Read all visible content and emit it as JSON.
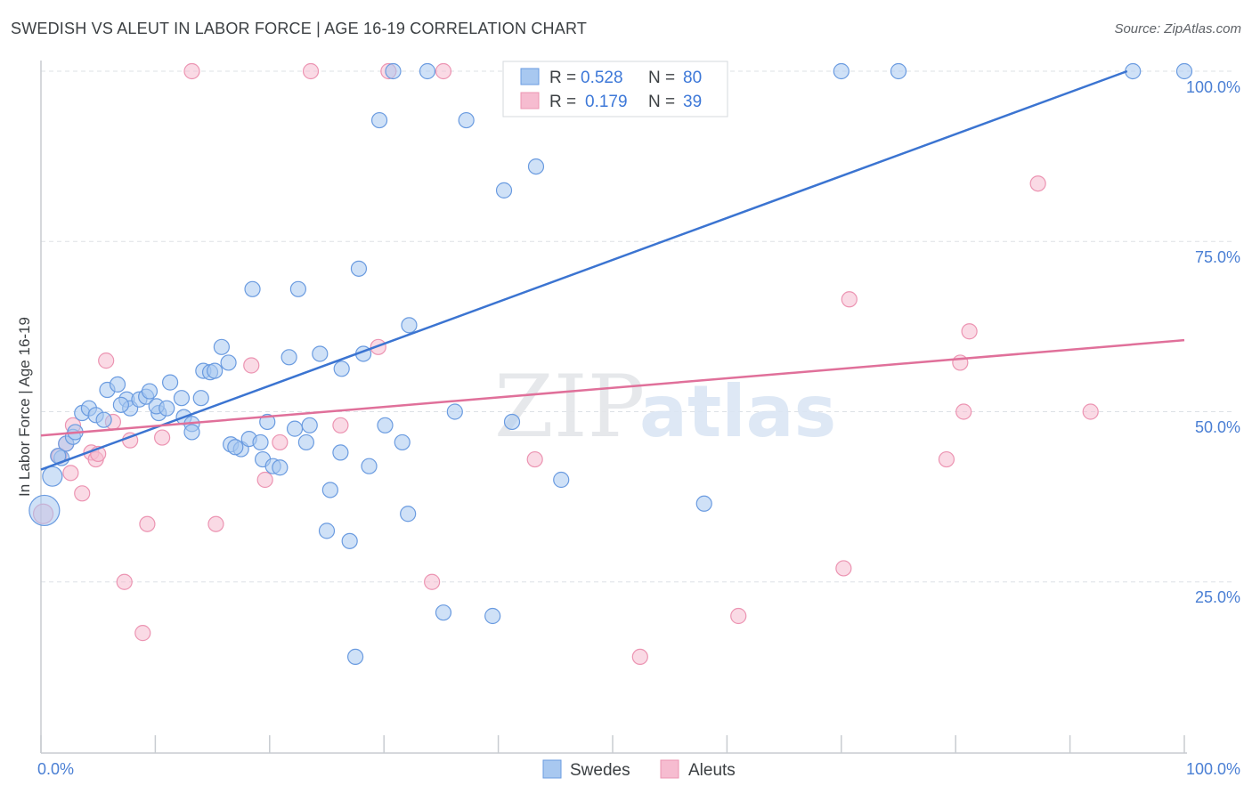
{
  "title": "SWEDISH VS ALEUT IN LABOR FORCE | AGE 16-19 CORRELATION CHART",
  "source": "Source: ZipAtlas.com",
  "watermark": {
    "zip": "ZIP",
    "atlas": "atlas"
  },
  "colors": {
    "swedes_fill": "#a8c8f0",
    "swedes_stroke": "#6a9be0",
    "swedes_line": "#3b74d1",
    "aleuts_fill": "#f6bcd0",
    "aleuts_stroke": "#ec94b2",
    "aleuts_line": "#e0709a",
    "tick_label": "#4a7fd4",
    "grid": "#dde1e6"
  },
  "legend": {
    "r_label": "R =",
    "n_label": "N =",
    "swedes": {
      "r": "0.528",
      "n": "80"
    },
    "aleuts": {
      "r": "0.179",
      "n": "39"
    }
  },
  "chart_data": {
    "type": "scatter",
    "title": "SWEDISH VS ALEUT IN LABOR FORCE | AGE 16-19 CORRELATION CHART",
    "xlabel": "",
    "ylabel": "In Labor Force | Age 16-19",
    "xlim": [
      0,
      100
    ],
    "ylim": [
      0,
      100
    ],
    "x_tick_labels": [
      "0.0%",
      "100.0%"
    ],
    "y_tick_labels": [
      "25.0%",
      "50.0%",
      "75.0%",
      "100.0%"
    ],
    "y_tick_values": [
      25,
      50,
      75,
      100
    ],
    "grid": true,
    "legend_position": "top-center",
    "series": [
      {
        "name": "Swedes",
        "r": 0.528,
        "n": 80,
        "trend": {
          "x0": 0,
          "y0": 41.5,
          "x1": 95,
          "y1": 100
        },
        "points": [
          [
            0.3,
            35.5,
            "xl"
          ],
          [
            1.0,
            40.5,
            "l"
          ],
          [
            1.8,
            43.2
          ],
          [
            2.2,
            45.3
          ],
          [
            2.8,
            46.3
          ],
          [
            3.6,
            49.8
          ],
          [
            4.2,
            50.5
          ],
          [
            4.8,
            49.5
          ],
          [
            5.5,
            48.8
          ],
          [
            5.8,
            53.2
          ],
          [
            6.7,
            54.0
          ],
          [
            7.5,
            51.8
          ],
          [
            7.8,
            50.5
          ],
          [
            8.6,
            51.8
          ],
          [
            9.2,
            52.2
          ],
          [
            9.5,
            53.0
          ],
          [
            10.3,
            49.8
          ],
          [
            10.1,
            50.8
          ],
          [
            11.0,
            50.5
          ],
          [
            11.3,
            54.3
          ],
          [
            12.3,
            52.0
          ],
          [
            12.5,
            49.2
          ],
          [
            13.2,
            48.2
          ],
          [
            13.2,
            47.0
          ],
          [
            14.0,
            52.0
          ],
          [
            14.2,
            56.0
          ],
          [
            14.8,
            55.8
          ],
          [
            15.2,
            56.0
          ],
          [
            15.8,
            59.5
          ],
          [
            16.4,
            57.2
          ],
          [
            16.6,
            45.2
          ],
          [
            17.5,
            44.5
          ],
          [
            18.2,
            46.0
          ],
          [
            18.5,
            68.0
          ],
          [
            19.2,
            45.5
          ],
          [
            19.4,
            43.0
          ],
          [
            19.8,
            48.5
          ],
          [
            20.3,
            42.0
          ],
          [
            20.9,
            41.8
          ],
          [
            21.7,
            58.0
          ],
          [
            22.2,
            47.5
          ],
          [
            22.5,
            68.0
          ],
          [
            23.2,
            45.5
          ],
          [
            23.5,
            48.0
          ],
          [
            24.4,
            58.5
          ],
          [
            25.0,
            32.5
          ],
          [
            25.3,
            38.5
          ],
          [
            26.2,
            44.0
          ],
          [
            26.3,
            56.3
          ],
          [
            27.0,
            31.0
          ],
          [
            27.5,
            14.0
          ],
          [
            27.8,
            71.0
          ],
          [
            28.2,
            58.5
          ],
          [
            28.7,
            42.0
          ],
          [
            29.6,
            92.8
          ],
          [
            30.1,
            48.0
          ],
          [
            30.8,
            100
          ],
          [
            31.6,
            45.5
          ],
          [
            32.1,
            35.0
          ],
          [
            32.2,
            62.7
          ],
          [
            33.8,
            100
          ],
          [
            35.2,
            20.5
          ],
          [
            36.2,
            50.0
          ],
          [
            37.2,
            92.8
          ],
          [
            39.5,
            20.0
          ],
          [
            40.5,
            82.5
          ],
          [
            41.2,
            48.5
          ],
          [
            42.1,
            100
          ],
          [
            43.3,
            86.0
          ],
          [
            45.5,
            40.0
          ],
          [
            56.5,
            100
          ],
          [
            58.0,
            36.5
          ],
          [
            70.0,
            100
          ],
          [
            75.0,
            100
          ],
          [
            95.5,
            100
          ],
          [
            100,
            100
          ],
          [
            3.0,
            47.0
          ],
          [
            1.5,
            43.5
          ],
          [
            7.0,
            51.0
          ],
          [
            17.0,
            44.8
          ]
        ]
      },
      {
        "name": "Aleuts",
        "r": 0.179,
        "n": 39,
        "trend": {
          "x0": 0,
          "y0": 46.5,
          "x1": 100,
          "y1": 60.5
        },
        "points": [
          [
            0.2,
            35.0,
            "m"
          ],
          [
            1.6,
            43.5
          ],
          [
            2.2,
            45.3
          ],
          [
            2.6,
            41.0
          ],
          [
            2.8,
            48.0
          ],
          [
            3.6,
            38.0
          ],
          [
            4.4,
            44.0
          ],
          [
            4.8,
            43.0
          ],
          [
            5.0,
            43.8
          ],
          [
            5.7,
            57.5
          ],
          [
            6.3,
            48.5
          ],
          [
            7.3,
            25.0
          ],
          [
            7.8,
            45.8
          ],
          [
            8.9,
            17.5
          ],
          [
            9.3,
            33.5
          ],
          [
            10.6,
            46.2
          ],
          [
            13.2,
            100
          ],
          [
            15.3,
            33.5
          ],
          [
            18.4,
            56.8
          ],
          [
            19.6,
            40.0
          ],
          [
            20.9,
            45.5
          ],
          [
            23.6,
            100
          ],
          [
            26.2,
            48.0
          ],
          [
            29.5,
            59.5
          ],
          [
            30.4,
            100
          ],
          [
            34.2,
            25.0
          ],
          [
            35.2,
            100
          ],
          [
            43.2,
            43.0
          ],
          [
            52.4,
            14.0
          ],
          [
            57.0,
            100
          ],
          [
            61.0,
            20.0
          ],
          [
            70.2,
            27.0
          ],
          [
            70.7,
            66.5
          ],
          [
            79.2,
            43.0
          ],
          [
            80.4,
            57.2
          ],
          [
            80.7,
            50.0
          ],
          [
            81.2,
            61.8
          ],
          [
            87.2,
            83.5
          ],
          [
            91.8,
            50.0
          ]
        ]
      }
    ]
  },
  "bottom_legend": {
    "swedes": "Swedes",
    "aleuts": "Aleuts"
  }
}
